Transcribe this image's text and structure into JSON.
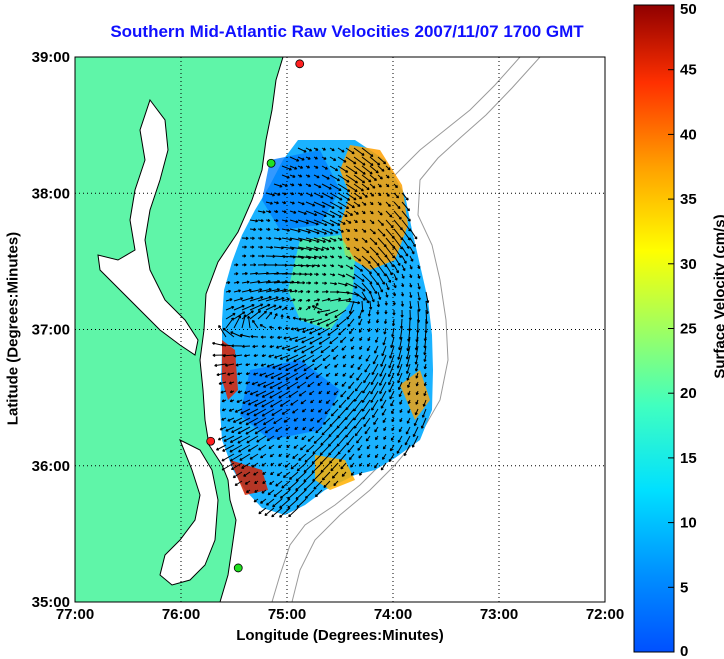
{
  "title": "Southern Mid-Atlantic Raw Velocities 2007/11/07 1700 GMT",
  "map": {
    "xlabel": "Longitude (Degrees:Minutes)",
    "ylabel": "Latitude (Degrees:Minutes)",
    "xticks": [
      "77:00",
      "76:00",
      "75:00",
      "74:00",
      "73:00",
      "72:00"
    ],
    "yticks": [
      "39:00",
      "38:00",
      "37:00",
      "36:00",
      "35:00"
    ],
    "xlim": [
      -77,
      -72
    ],
    "ylim": [
      35,
      39
    ],
    "grid": "dotted",
    "colors": {
      "land": "#5ff5a8",
      "water": "#ffffff",
      "arrows": "#000000",
      "bathymetry": "#9a9a9a"
    },
    "markers": [
      {
        "name": "site-1",
        "color": "#ff2020",
        "lon": -74.88,
        "lat": 38.95
      },
      {
        "name": "site-2",
        "color": "#20e020",
        "lon": -75.15,
        "lat": 38.22
      },
      {
        "name": "site-3",
        "color": "#ff2020",
        "lon": -75.72,
        "lat": 36.18
      },
      {
        "name": "site-4",
        "color": "#20e020",
        "lon": -75.46,
        "lat": 35.25
      }
    ]
  },
  "colorbar": {
    "label": "Surface Velocity (cm/s)",
    "ticks": [
      "0",
      "5",
      "10",
      "15",
      "20",
      "25",
      "30",
      "35",
      "40",
      "45",
      "50"
    ],
    "range": [
      0,
      50
    ],
    "colormap": "jet"
  }
}
